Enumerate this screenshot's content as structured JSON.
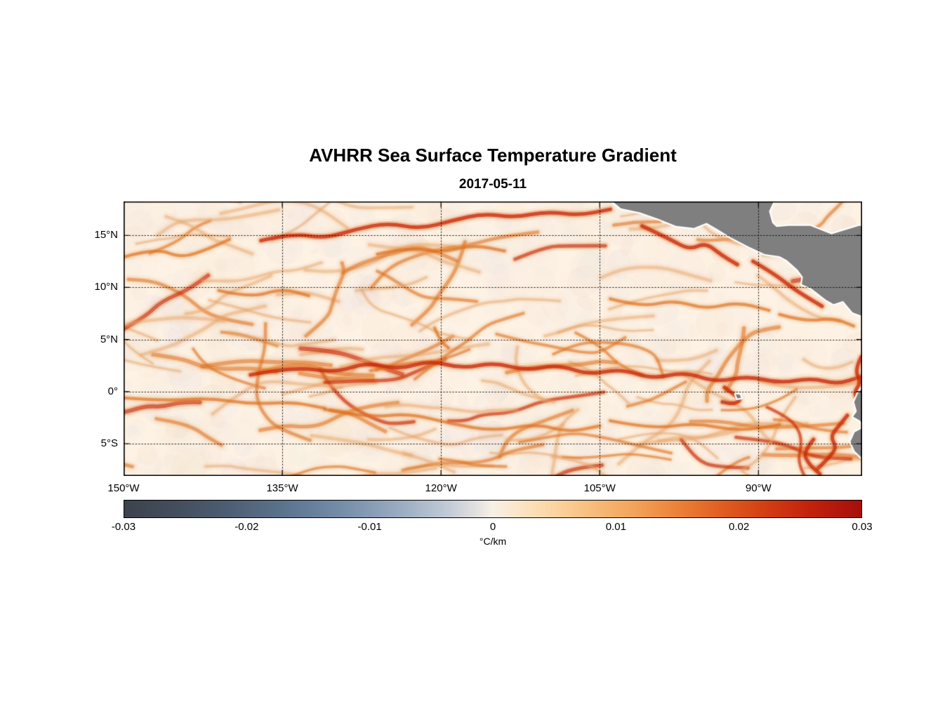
{
  "chart_data": {
    "type": "heatmap",
    "title": "AVHRR Sea Surface Temperature Gradient",
    "date": "2017-05-11",
    "lon_range": [
      -150,
      -80.2
    ],
    "lat_range": [
      -8.1,
      18.25
    ],
    "grid": "dotted",
    "x_ticks": [
      {
        "lon": -150,
        "label": "150°W"
      },
      {
        "lon": -135,
        "label": "135°W"
      },
      {
        "lon": -120,
        "label": "120°W"
      },
      {
        "lon": -105,
        "label": "105°W"
      },
      {
        "lon": -90,
        "label": "90°W"
      }
    ],
    "y_ticks": [
      {
        "lat": 15,
        "label": "15°N"
      },
      {
        "lat": 10,
        "label": "10°N"
      },
      {
        "lat": 5,
        "label": "5°N"
      },
      {
        "lat": 0,
        "label": "0°"
      },
      {
        "lat": -5,
        "label": "5°S"
      }
    ],
    "colorbar": {
      "min": -0.03,
      "max": 0.03,
      "ticks": [
        "-0.03",
        "-0.02",
        "-0.01",
        "0",
        "0.01",
        "0.02",
        "0.03"
      ],
      "units": "°C/km",
      "stops": [
        {
          "pos": 0.0,
          "color": "#3d434c"
        },
        {
          "pos": 0.06,
          "color": "#424c5a"
        },
        {
          "pos": 0.125,
          "color": "#4a5a6e"
        },
        {
          "pos": 0.19,
          "color": "#566b84"
        },
        {
          "pos": 0.25,
          "color": "#657e9b"
        },
        {
          "pos": 0.315,
          "color": "#7e94af"
        },
        {
          "pos": 0.375,
          "color": "#9aacc2"
        },
        {
          "pos": 0.44,
          "color": "#c2cbd6"
        },
        {
          "pos": 0.48,
          "color": "#e4e2e0"
        },
        {
          "pos": 0.5,
          "color": "#f7f0e6"
        },
        {
          "pos": 0.53,
          "color": "#fbe7cb"
        },
        {
          "pos": 0.58,
          "color": "#fbd6a4"
        },
        {
          "pos": 0.625,
          "color": "#f8c183"
        },
        {
          "pos": 0.69,
          "color": "#f3a45b"
        },
        {
          "pos": 0.75,
          "color": "#ec8238"
        },
        {
          "pos": 0.81,
          "color": "#e05e20"
        },
        {
          "pos": 0.875,
          "color": "#d23b12"
        },
        {
          "pos": 0.935,
          "color": "#c1200c"
        },
        {
          "pos": 1.0,
          "color": "#a50f0c"
        }
      ]
    },
    "colors": {
      "ocean_base": "#fdf2e4",
      "land": "#7f7f7f",
      "coast_halo": "#ffffff",
      "halo": "#eb9a50",
      "weak_core": "#e5a468",
      "weak_mid": "#edb27c",
      "medium_core": "#dd6f1e",
      "medium_mid": "#e8954a",
      "strong_core": "#c62608",
      "strong_mid": "#e05512",
      "mottle": [
        "#f7e3cc",
        "#fae9d6",
        "#f2d8bc",
        "#efe3da",
        "#e9dde6",
        "#e6dce8",
        "#f6e8dc",
        "#ece6e0"
      ]
    },
    "features": [
      {
        "name": "equatorial-front",
        "strength": "strong",
        "points": [
          [
            -138,
            1.6
          ],
          [
            -134,
            2.4
          ],
          [
            -130,
            1.8
          ],
          [
            -127,
            2.8
          ],
          [
            -124,
            2.1
          ],
          [
            -121,
            3.0
          ],
          [
            -118,
            2.2
          ],
          [
            -115,
            2.8
          ],
          [
            -112,
            2.0
          ],
          [
            -109,
            2.6
          ],
          [
            -106,
            1.6
          ],
          [
            -103,
            2.2
          ],
          [
            -100,
            1.2
          ],
          [
            -97,
            1.9
          ],
          [
            -94,
            0.9
          ],
          [
            -91,
            1.5
          ],
          [
            -88,
            0.8
          ],
          [
            -85,
            1.3
          ],
          [
            -82.5,
            0.7
          ],
          [
            -80.4,
            1.4
          ]
        ]
      },
      {
        "name": "equatorial-front-west",
        "strength": "medium",
        "points": [
          [
            -150,
            -0.6
          ],
          [
            -146,
            -0.9
          ],
          [
            -142,
            -0.6
          ],
          [
            -138,
            -1.2
          ],
          [
            -134,
            -1.0
          ],
          [
            -131,
            -1.6
          ]
        ]
      },
      {
        "name": "south-equatorial-front",
        "strength": "medium",
        "points": [
          [
            -131,
            -1.7
          ],
          [
            -127,
            -2.5
          ],
          [
            -123,
            -2.1
          ],
          [
            -119,
            -3.1
          ],
          [
            -115,
            -3.8
          ],
          [
            -111,
            -3.1
          ],
          [
            -108,
            -3.9
          ],
          [
            -105,
            -3.3
          ]
        ]
      },
      {
        "name": "south-band-east",
        "strength": "medium",
        "points": [
          [
            -104,
            -2.8
          ],
          [
            -100,
            -3.6
          ],
          [
            -96,
            -3.0
          ],
          [
            -92,
            -3.8
          ],
          [
            -88,
            -3.2
          ]
        ]
      },
      {
        "name": "north-tropical-front-west",
        "strength": "medium",
        "points": [
          [
            -150,
            12.9
          ],
          [
            -147,
            13.8
          ],
          [
            -144.5,
            12.8
          ],
          [
            -142,
            13.7
          ],
          [
            -140,
            14.6
          ]
        ]
      },
      {
        "name": "north-tropical-front",
        "strength": "strong",
        "points": [
          [
            -137,
            14.5
          ],
          [
            -134,
            15.2
          ],
          [
            -131,
            14.7
          ],
          [
            -128,
            15.6
          ],
          [
            -125,
            16.2
          ],
          [
            -122,
            15.6
          ],
          [
            -119,
            16.4
          ],
          [
            -116,
            17.1
          ],
          [
            -113,
            16.7
          ],
          [
            -110,
            17.3
          ],
          [
            -107,
            16.9
          ],
          [
            -104,
            17.5
          ]
        ]
      },
      {
        "name": "north-front-branch",
        "strength": "medium",
        "points": [
          [
            -126,
            13.2
          ],
          [
            -123,
            13.9
          ],
          [
            -120,
            13.3
          ],
          [
            -117,
            14.1
          ],
          [
            -114,
            13.5
          ]
        ]
      },
      {
        "name": "tehuantepec-front",
        "strength": "strong",
        "points": [
          [
            -101,
            15.9
          ],
          [
            -98.5,
            14.7
          ],
          [
            -96.5,
            13.6
          ],
          [
            -95,
            14.3
          ],
          [
            -93.5,
            13.1
          ],
          [
            -92,
            12.2
          ]
        ]
      },
      {
        "name": "papagayo-front",
        "strength": "strong",
        "points": [
          [
            -90.5,
            12.5
          ],
          [
            -88.5,
            11.3
          ],
          [
            -87,
            10.1
          ],
          [
            -85.5,
            9.1
          ],
          [
            -84,
            8.2
          ]
        ]
      },
      {
        "name": "panama-bight-front",
        "strength": "medium",
        "points": [
          [
            -88,
            7.4
          ],
          [
            -85.5,
            6.7
          ],
          [
            -83,
            7.1
          ],
          [
            -81,
            6.3
          ]
        ]
      },
      {
        "name": "countercurrent-front",
        "strength": "medium",
        "points": [
          [
            -104,
            8.9
          ],
          [
            -101,
            8.1
          ],
          [
            -98,
            8.8
          ],
          [
            -95,
            7.9
          ],
          [
            -92,
            8.6
          ],
          [
            -89,
            7.8
          ]
        ]
      },
      {
        "name": "mid-basin-filament-1",
        "strength": "medium",
        "points": [
          [
            -141,
            9.7
          ],
          [
            -138,
            9.0
          ],
          [
            -135,
            9.9
          ],
          [
            -132.5,
            9.2
          ]
        ]
      },
      {
        "name": "mid-basin-filament-2",
        "strength": "medium",
        "points": [
          [
            -120.6,
            6.1
          ],
          [
            -120.1,
            4.9
          ],
          [
            -119.3,
            4.2
          ]
        ]
      },
      {
        "name": "galapagos-wake",
        "strength": "strong",
        "points": [
          [
            -93.2,
            0.4
          ],
          [
            -92.4,
            -0.2
          ],
          [
            -91.6,
            -0.8
          ],
          [
            -92.4,
            -1.2
          ],
          [
            -93.4,
            -1.0
          ]
        ]
      },
      {
        "name": "ecuador-coastal-front",
        "strength": "strong",
        "points": [
          [
            -80.3,
            3.3
          ],
          [
            -80.9,
            2.1
          ],
          [
            -80.3,
            0.9
          ],
          [
            -81.0,
            -0.1
          ],
          [
            -80.5,
            -1.0
          ]
        ]
      },
      {
        "name": "peru-coastal-front",
        "strength": "strong",
        "points": [
          [
            -81.6,
            -2.3
          ],
          [
            -82.4,
            -3.3
          ],
          [
            -83.2,
            -4.3
          ],
          [
            -82.6,
            -5.4
          ],
          [
            -83.4,
            -6.4
          ],
          [
            -84.4,
            -7.4
          ]
        ]
      },
      {
        "name": "peru-offshore-front",
        "strength": "strong",
        "points": [
          [
            -84.8,
            -4.6
          ],
          [
            -85.8,
            -5.8
          ],
          [
            -85.2,
            -7.0
          ],
          [
            -84.2,
            -7.9
          ]
        ]
      }
    ],
    "land_polygons": [
      [
        [
          -104.2,
          18.6
        ],
        [
          -103.0,
          17.6
        ],
        [
          -101.2,
          17.2
        ],
        [
          -99.5,
          16.6
        ],
        [
          -97.8,
          15.9
        ],
        [
          -96.1,
          15.7
        ],
        [
          -94.9,
          16.2
        ],
        [
          -93.9,
          15.6
        ],
        [
          -92.6,
          14.8
        ],
        [
          -90.9,
          13.9
        ],
        [
          -89.4,
          13.2
        ],
        [
          -88.0,
          13.0
        ],
        [
          -87.3,
          12.6
        ],
        [
          -86.3,
          11.7
        ],
        [
          -85.8,
          11.0
        ],
        [
          -85.9,
          10.3
        ],
        [
          -85.0,
          9.9
        ],
        [
          -83.6,
          8.8
        ],
        [
          -82.9,
          8.4
        ],
        [
          -82.0,
          8.7
        ],
        [
          -81.1,
          7.6
        ],
        [
          -80.3,
          7.3
        ],
        [
          -79.9,
          8.3
        ],
        [
          -79.2,
          8.9
        ],
        [
          -78.0,
          8.7
        ],
        [
          -78.0,
          16.0
        ],
        [
          -80.5,
          15.9
        ],
        [
          -83.1,
          15.1
        ],
        [
          -85.1,
          15.9
        ],
        [
          -87.1,
          15.9
        ],
        [
          -88.3,
          15.8
        ],
        [
          -88.7,
          16.2
        ],
        [
          -89.0,
          17.3
        ],
        [
          -88.4,
          18.6
        ]
      ],
      [
        [
          -78.6,
          2.4
        ],
        [
          -79.3,
          1.3
        ],
        [
          -80.1,
          0.5
        ],
        [
          -80.6,
          -0.2
        ],
        [
          -80.95,
          -1.0
        ],
        [
          -80.7,
          -1.9
        ],
        [
          -81.05,
          -2.4
        ],
        [
          -80.4,
          -2.8
        ],
        [
          -80.0,
          -3.4
        ],
        [
          -80.9,
          -3.9
        ],
        [
          -81.3,
          -4.8
        ],
        [
          -80.9,
          -5.7
        ],
        [
          -80.0,
          -6.6
        ],
        [
          -79.3,
          -7.5
        ],
        [
          -78.9,
          -8.5
        ],
        [
          -78.7,
          -9.2
        ],
        [
          -77.0,
          -9.2
        ],
        [
          -77.0,
          2.4
        ]
      ],
      [
        [
          -92.15,
          -0.25
        ],
        [
          -91.75,
          -0.3
        ],
        [
          -91.65,
          -0.6
        ],
        [
          -92.0,
          -0.65
        ]
      ]
    ]
  }
}
